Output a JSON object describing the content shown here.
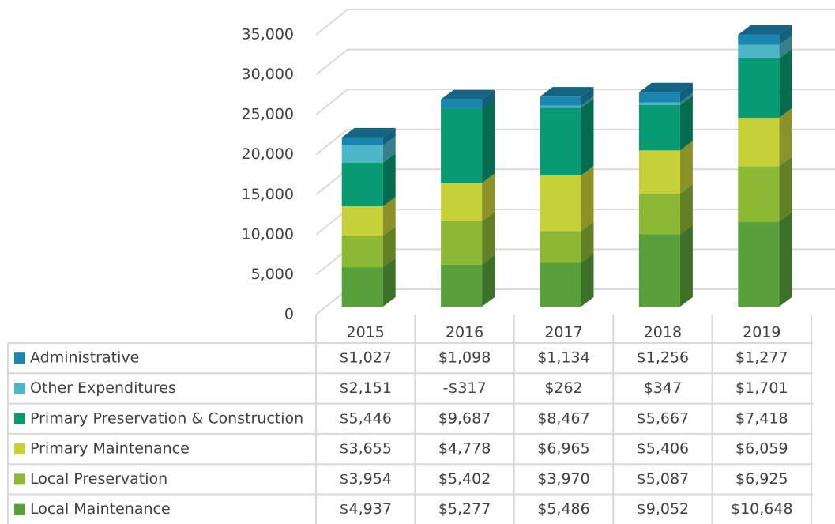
{
  "chart_data": {
    "type": "bar3d_stacked_table",
    "categories": [
      "2015",
      "2016",
      "2017",
      "2018",
      "2019"
    ],
    "series": [
      {
        "name": "Administrative",
        "color": "#1a86b0",
        "values": [
          1027,
          1098,
          1134,
          1256,
          1277
        ],
        "value_labels": [
          "$1,027",
          "$1,098",
          "$1,134",
          "$1,256",
          "$1,277"
        ]
      },
      {
        "name": "Other Expenditures",
        "color": "#4db6c6",
        "values": [
          2151,
          -317,
          262,
          347,
          1701
        ],
        "value_labels": [
          "$2,151",
          "-$317",
          "$262",
          "$347",
          "$1,701"
        ]
      },
      {
        "name": "Primary Preservation & Construction",
        "color": "#089a72",
        "values": [
          5446,
          9687,
          8467,
          5667,
          7418
        ],
        "value_labels": [
          "$5,446",
          "$9,687",
          "$8,467",
          "$5,667",
          "$7,418"
        ]
      },
      {
        "name": "Primary Maintenance",
        "color": "#c6d139",
        "values": [
          3655,
          4778,
          6965,
          5406,
          6059
        ],
        "value_labels": [
          "$3,655",
          "$4,778",
          "$6,965",
          "$5,406",
          "$6,059"
        ]
      },
      {
        "name": "Local Preservation",
        "color": "#8db833",
        "values": [
          3954,
          5402,
          3970,
          5087,
          6925
        ],
        "value_labels": [
          "$3,954",
          "$5,402",
          "$3,970",
          "$5,087",
          "$6,925"
        ]
      },
      {
        "name": "Local Maintenance",
        "color": "#57a03a",
        "values": [
          4937,
          5277,
          5486,
          9052,
          10648
        ],
        "value_labels": [
          "$4,937",
          "$5,277",
          "$5,486",
          "$9,052",
          "$10,648"
        ]
      }
    ],
    "ylim": [
      0,
      35000
    ],
    "yticks": [
      0,
      {
        "value": 5000,
        "label": "5,000"
      },
      {
        "value": 10000,
        "label": "10,000"
      },
      {
        "value": 15000,
        "label": "15,000"
      },
      {
        "value": 20000,
        "label": "20,000"
      },
      {
        "value": 25000,
        "label": "25,000"
      },
      {
        "value": 30000,
        "label": "30,000"
      },
      {
        "value": 35000,
        "label": "35,000"
      }
    ],
    "grid": true
  }
}
